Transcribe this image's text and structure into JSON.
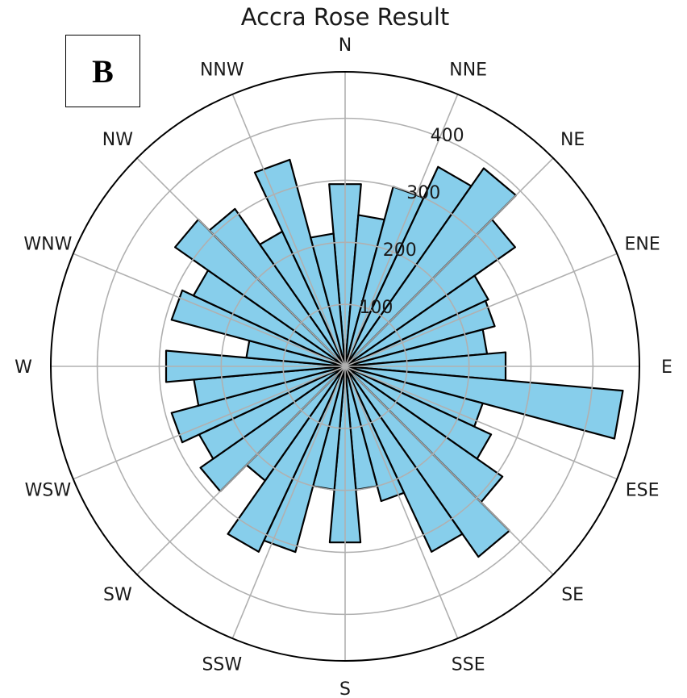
{
  "panel_label": "B",
  "chart_data": {
    "type": "polar-bar",
    "title": "Accra Rose Result",
    "direction_labels": [
      "N",
      "NNE",
      "NE",
      "ENE",
      "E",
      "ESE",
      "SE",
      "SSE",
      "S",
      "SSW",
      "SW",
      "WSW",
      "W",
      "WNW",
      "NW",
      "NNW"
    ],
    "radial_ticks": [
      100,
      200,
      300,
      400
    ],
    "rmax": 475,
    "grid": true,
    "bar_color": "#87ceeb",
    "edge_color": "#000000",
    "bins": 36,
    "angles_deg": [
      0,
      10,
      20,
      30,
      40,
      50,
      60,
      70,
      80,
      90,
      100,
      110,
      120,
      130,
      140,
      150,
      160,
      170,
      180,
      190,
      200,
      210,
      220,
      230,
      240,
      250,
      260,
      270,
      280,
      290,
      300,
      310,
      320,
      330,
      340,
      350
    ],
    "values": [
      295,
      245,
      300,
      355,
      390,
      335,
      255,
      250,
      230,
      260,
      450,
      230,
      260,
      310,
      375,
      330,
      225,
      200,
      285,
      200,
      310,
      330,
      225,
      285,
      260,
      290,
      245,
      290,
      160,
      290,
      270,
      335,
      310,
      240,
      345,
      215
    ]
  }
}
